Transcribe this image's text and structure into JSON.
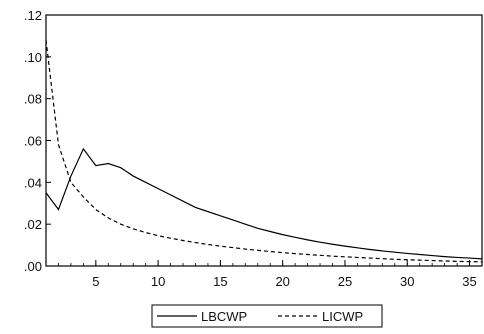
{
  "chart_data": {
    "type": "line",
    "title": "",
    "xlabel": "",
    "ylabel": "",
    "xlim": [
      1,
      36
    ],
    "ylim": [
      0,
      0.12
    ],
    "x_ticks": [
      5,
      10,
      15,
      20,
      25,
      30,
      35
    ],
    "x_tick_labels": [
      "5",
      "10",
      "15",
      "20",
      "25",
      "30",
      "35"
    ],
    "y_ticks": [
      0,
      0.02,
      0.04,
      0.06,
      0.08,
      0.1,
      0.12
    ],
    "y_tick_labels": [
      ".00",
      ".02",
      ".04",
      ".06",
      ".08",
      ".10",
      ".12"
    ],
    "grid": false,
    "legend_position": "bottom-center",
    "series": [
      {
        "name": "LBCWP",
        "line_style": "solid",
        "color": "#000000",
        "x": [
          1,
          2,
          3,
          4,
          5,
          6,
          7,
          8,
          9,
          10,
          11,
          12,
          13,
          14,
          15,
          16,
          17,
          18,
          19,
          20,
          21,
          22,
          23,
          24,
          25,
          26,
          27,
          28,
          29,
          30,
          31,
          32,
          33,
          34,
          35,
          36
        ],
        "values": [
          0.035,
          0.027,
          0.043,
          0.056,
          0.048,
          0.049,
          0.047,
          0.043,
          0.04,
          0.037,
          0.034,
          0.031,
          0.028,
          0.026,
          0.024,
          0.022,
          0.02,
          0.018,
          0.0165,
          0.015,
          0.0137,
          0.0125,
          0.0114,
          0.0104,
          0.0095,
          0.0087,
          0.0079,
          0.0072,
          0.0066,
          0.006,
          0.0055,
          0.005,
          0.0045,
          0.0041,
          0.0038,
          0.0034
        ]
      },
      {
        "name": "LICWP",
        "line_style": "dashed",
        "color": "#000000",
        "x": [
          1,
          2,
          3,
          4,
          5,
          6,
          7,
          8,
          9,
          10,
          11,
          12,
          13,
          14,
          15,
          16,
          17,
          18,
          19,
          20,
          21,
          22,
          23,
          24,
          25,
          26,
          27,
          28,
          29,
          30,
          31,
          32,
          33,
          34,
          35,
          36
        ],
        "values": [
          0.108,
          0.058,
          0.04,
          0.033,
          0.027,
          0.023,
          0.02,
          0.0178,
          0.016,
          0.0145,
          0.0133,
          0.0122,
          0.0112,
          0.0103,
          0.0095,
          0.0088,
          0.0081,
          0.0075,
          0.0069,
          0.0064,
          0.0059,
          0.0055,
          0.0051,
          0.0047,
          0.0044,
          0.0041,
          0.0038,
          0.0035,
          0.0032,
          0.003,
          0.0028,
          0.0026,
          0.0024,
          0.0022,
          0.0021,
          0.002
        ]
      }
    ]
  }
}
